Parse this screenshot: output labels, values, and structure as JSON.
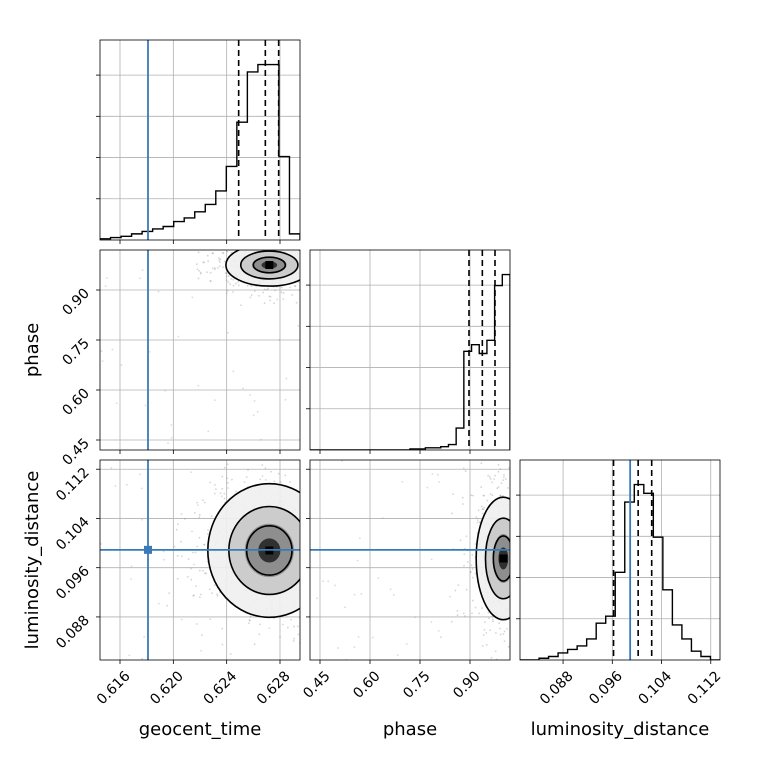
{
  "chart_data": {
    "type": "corner",
    "parameters": [
      "geocent_time",
      "phase",
      "luminosity_distance"
    ],
    "axis_labels": {
      "x": [
        "geocent_time",
        "phase",
        "luminosity_distance"
      ],
      "y": [
        "",
        "phase",
        "luminosity_distance"
      ]
    },
    "ranges": {
      "geocent_time": [
        0.6145,
        0.6295
      ],
      "phase": [
        0.42,
        1.02
      ],
      "luminosity_distance": [
        0.081,
        0.1135
      ]
    },
    "ticks": {
      "geocent_time": {
        "values": [
          0.616,
          0.62,
          0.624,
          0.628
        ],
        "labels": [
          "0.616",
          "0.620",
          "0.624",
          "0.628"
        ]
      },
      "phase": {
        "values": [
          0.45,
          0.6,
          0.75,
          0.9
        ],
        "labels": [
          "0.45",
          "0.60",
          "0.75",
          "0.90"
        ]
      },
      "luminosity_distance": {
        "values": [
          0.088,
          0.096,
          0.104,
          0.112
        ],
        "labels": [
          "0.088",
          "0.096",
          "0.104",
          "0.112"
        ]
      }
    },
    "truths": {
      "geocent_time": 0.6181,
      "phase": null,
      "luminosity_distance": 0.0989
    },
    "quantiles": {
      "geocent_time": [
        0.6249,
        0.6269,
        0.6279
      ],
      "phase": [
        0.897,
        0.937,
        0.975
      ],
      "luminosity_distance": [
        0.0962,
        0.1002,
        0.1024
      ]
    },
    "histograms": {
      "geocent_time": {
        "edges": [
          0.6145,
          0.6295
        ],
        "counts": [
          1,
          2,
          3,
          5,
          7,
          9,
          11,
          15,
          18,
          23,
          29,
          40,
          60,
          96,
          137,
          143,
          143,
          68,
          5
        ]
      },
      "phase": {
        "edges": [
          0.42,
          1.02
        ],
        "counts": [
          0,
          0,
          0,
          0,
          0,
          0,
          0,
          0,
          0,
          0,
          0,
          0,
          0,
          1,
          1,
          2,
          2,
          3,
          5,
          20,
          90,
          96,
          88,
          100,
          150,
          160
        ]
      },
      "luminosity_distance": {
        "edges": [
          0.081,
          0.1135
        ],
        "counts": [
          0,
          0,
          1,
          2,
          4,
          6,
          8,
          12,
          21,
          25,
          50,
          90,
          100,
          95,
          70,
          40,
          20,
          12,
          5,
          2,
          0
        ]
      }
    },
    "density_2d": [
      {
        "x": "geocent_time",
        "y": "phase",
        "peak": [
          0.6272,
          0.975
        ],
        "scatter_core": {
          "x_range": [
            0.622,
            0.6292
          ],
          "y_range": [
            0.86,
            1.0
          ]
        }
      },
      {
        "x": "geocent_time",
        "y": "luminosity_distance",
        "peak": [
          0.6272,
          0.0988
        ],
        "scatter_core": {
          "x_range": [
            0.619,
            0.6292
          ],
          "y_range": [
            0.088,
            0.112
          ]
        }
      },
      {
        "x": "phase",
        "y": "luminosity_distance",
        "peak": [
          1.0,
          0.0975
        ],
        "scatter_core": {
          "x_range": [
            0.84,
            1.02
          ],
          "y_range": [
            0.088,
            0.11
          ]
        }
      }
    ],
    "colors": {
      "truth": "#3a7ab8",
      "hist": "#000000",
      "quantile": "#000000",
      "grid": "#b0b0b0",
      "scatter": "#888888"
    }
  }
}
